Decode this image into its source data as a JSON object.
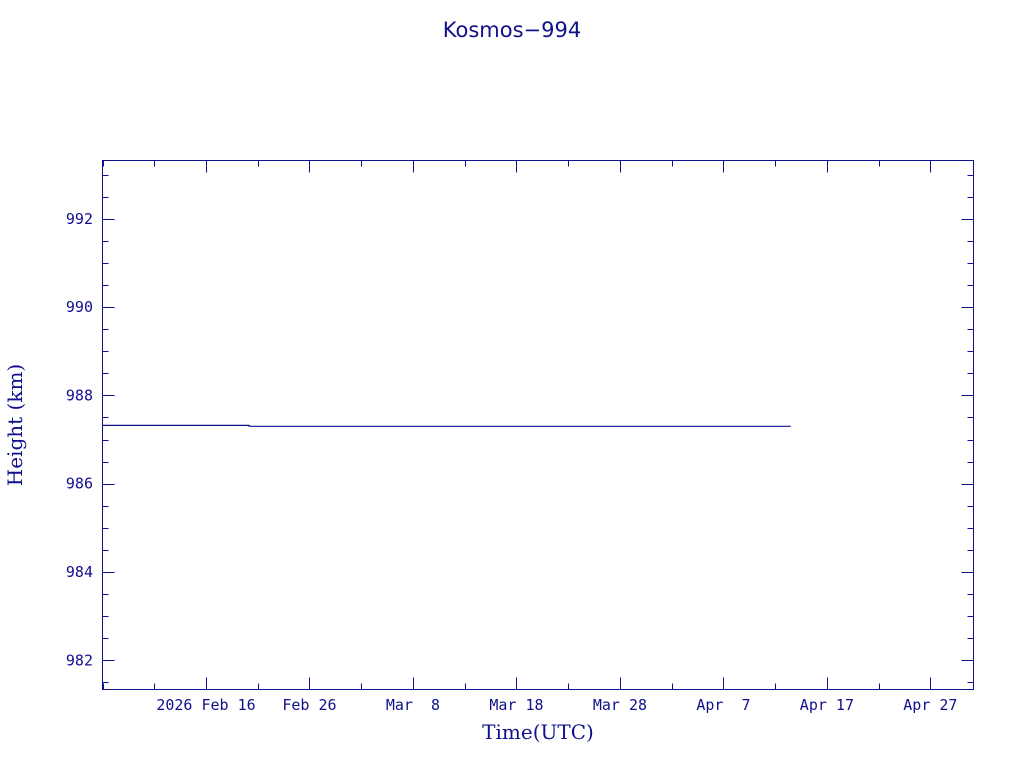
{
  "chart_data": {
    "type": "line",
    "title": "Kosmos−994",
    "xlabel": "Time(UTC)",
    "ylabel": "Height (km)",
    "xlim": [
      "2026-02-06T00:00",
      "2026-05-01T04:00"
    ],
    "ylim": [
      981.34,
      993.32
    ],
    "x_ticks": [
      {
        "date": "2026-02-16",
        "label": "2026 Feb 16"
      },
      {
        "date": "2026-02-26",
        "label": "Feb 26"
      },
      {
        "date": "2026-03-08",
        "label": "Mar  8"
      },
      {
        "date": "2026-03-18",
        "label": "Mar 18"
      },
      {
        "date": "2026-03-28",
        "label": "Mar 28"
      },
      {
        "date": "2026-04-07",
        "label": "Apr  7"
      },
      {
        "date": "2026-04-17",
        "label": "Apr 17"
      },
      {
        "date": "2026-04-27",
        "label": "Apr 27"
      }
    ],
    "y_ticks": [
      982,
      984,
      986,
      988,
      990,
      992
    ],
    "grid": false,
    "color": "#10108c",
    "series": [
      {
        "points": [
          [
            "2026-02-06T00:00",
            987.32
          ],
          [
            "2026-02-20T04:00",
            987.32
          ],
          [
            "2026-02-20T04:00",
            987.3
          ],
          [
            "2026-04-13T12:00",
            987.3
          ]
        ]
      }
    ]
  }
}
